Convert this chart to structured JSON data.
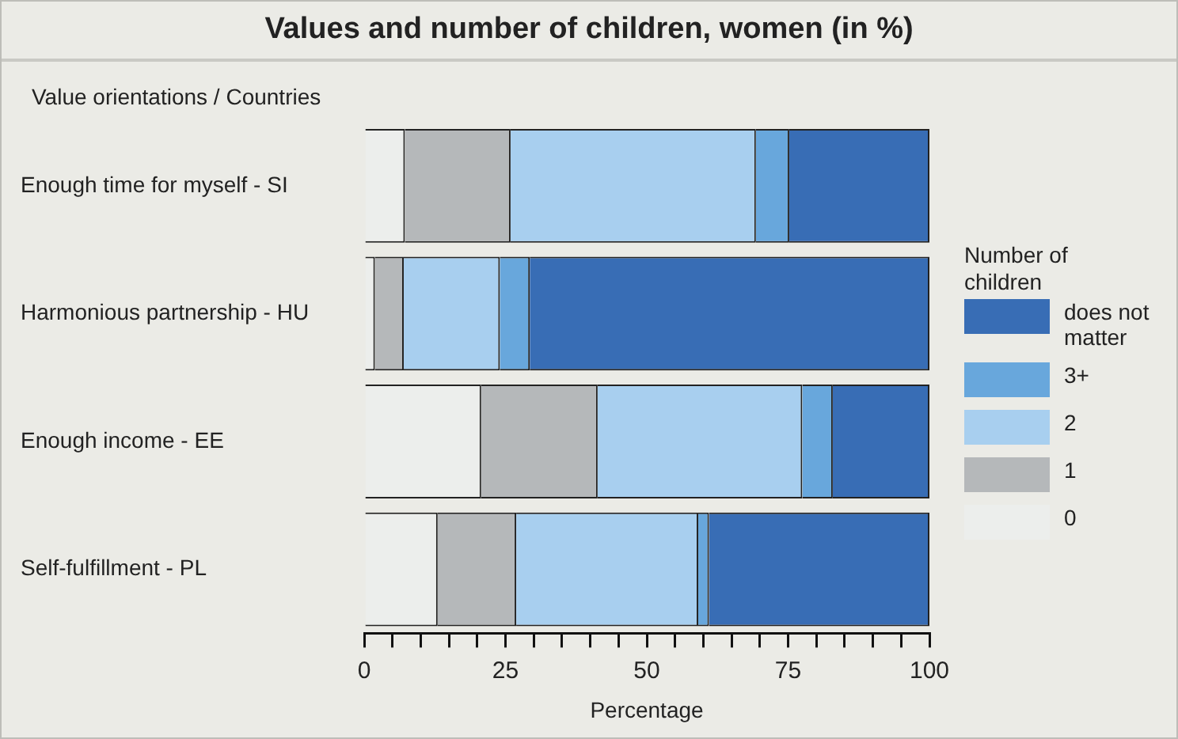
{
  "chart_data": {
    "type": "bar",
    "orientation": "horizontal",
    "stacked": true,
    "title": "Values and number of children, women (in %)",
    "ylabel": "Value orientations /  Countries",
    "xlabel": "Percentage",
    "legend_title": "Number of children",
    "categories": [
      "Enough time for myself - SI",
      "Harmonious partnership - HU",
      "Enough income - EE",
      "Self-fulfillment - PL"
    ],
    "series": [
      {
        "name": "0",
        "color": "#eceeec",
        "values": [
          7.2,
          1.9,
          20.7,
          13.0
        ]
      },
      {
        "name": "1",
        "color": "#b5b8ba",
        "values": [
          18.7,
          5.1,
          20.6,
          13.9
        ]
      },
      {
        "name": "2",
        "color": "#a8cfef",
        "values": [
          43.4,
          17.0,
          36.2,
          32.2
        ]
      },
      {
        "name": "3+",
        "color": "#68a7dc",
        "values": [
          5.9,
          5.3,
          5.4,
          1.9
        ]
      },
      {
        "name": "does not matter",
        "color": "#386db5",
        "values": [
          24.8,
          70.7,
          17.1,
          39.0
        ]
      }
    ],
    "xlim": [
      0,
      100
    ],
    "xticks": [
      0,
      {
        "value": 5,
        "label": null
      },
      {
        "value": 10,
        "label": null
      },
      {
        "value": 15,
        "label": null
      },
      {
        "value": 20,
        "label": null
      },
      25,
      {
        "value": 30,
        "label": null
      },
      {
        "value": 35,
        "label": null
      },
      {
        "value": 40,
        "label": null
      },
      {
        "value": 45,
        "label": null
      },
      50,
      {
        "value": 55,
        "label": null
      },
      {
        "value": 60,
        "label": null
      },
      {
        "value": 65,
        "label": null
      },
      {
        "value": 70,
        "label": null
      },
      75,
      {
        "value": 80,
        "label": null
      },
      {
        "value": 85,
        "label": null
      },
      {
        "value": 90,
        "label": null
      },
      {
        "value": 95,
        "label": null
      },
      100
    ],
    "grid": false,
    "legend": "right"
  }
}
